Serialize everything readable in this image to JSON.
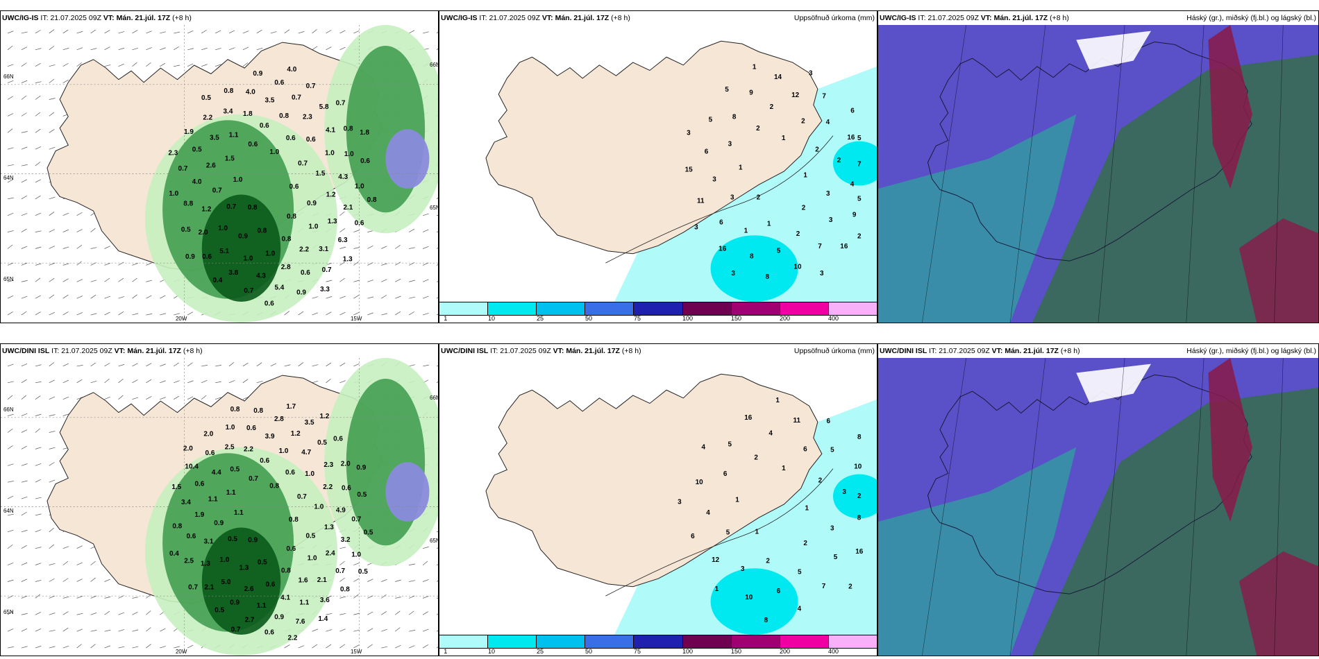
{
  "panels": [
    {
      "model": "UWC/IG-IS",
      "it_label": "IT:",
      "it": "21.07.2025 09Z",
      "vt_label": "VT:",
      "vt": "Mán. 21.júl. 17Z",
      "lead": "(+8 h)",
      "title": "",
      "lat_labels": [
        "66N",
        "64N",
        "65N",
        "20W",
        "15W",
        "66N",
        "65N"
      ],
      "numbers": [
        "0.6",
        "0.8",
        "1.0",
        "0.8",
        "1.0",
        "0.7",
        "0.8",
        "0.6",
        "0.9",
        "0.7",
        "0.6",
        "0.8",
        "1.5",
        "1.5",
        "0.9",
        "0.6",
        "1.0",
        "0.7",
        "0.6",
        "1.0",
        "1.1",
        "1.2",
        "1.0",
        "0.8",
        "2.2",
        "2.6",
        "1.0",
        "1.0",
        "1.8",
        "1.3",
        "1.2",
        "2.3",
        "2.8",
        "3.5",
        "4.3",
        "5.1",
        "3.5",
        "3.1",
        "4.0",
        "4.1",
        "4.3",
        "3.4",
        "2.1",
        "2.0",
        "0.7",
        "0.6",
        "0.5",
        "1.0",
        "3.8",
        "4.0",
        "6.3",
        "8.8",
        "5.8",
        "5.4",
        "2.2",
        "1.0",
        "0.6",
        "0.6",
        "0.7",
        "0.7",
        "0.8",
        "0.7",
        "0.8",
        "0.6",
        "0.5",
        "0.7",
        "0.9",
        "1.9",
        "0.6",
        "0.4",
        "0.9",
        "1.3",
        "1.0",
        "0.7",
        "0.6",
        "0.5",
        "0.8",
        "0.9",
        "4.0",
        "3.3",
        "2.3",
        "1.8"
      ]
    },
    {
      "model": "UWC/IG-IS",
      "it_label": "IT:",
      "it": "21.07.2025 09Z",
      "vt_label": "VT:",
      "vt": "Mán. 21.júl. 17Z",
      "lead": "(+8 h)",
      "title": "Uppsöfnuð úrkoma (mm)",
      "numbers": [
        "1",
        "2",
        "1",
        "2",
        "1",
        "2",
        "1",
        "2",
        "3",
        "3",
        "2",
        "2",
        "3",
        "2",
        "1",
        "2",
        "3",
        "3",
        "4",
        "5",
        "8",
        "4",
        "6",
        "12",
        "7",
        "6",
        "16",
        "8",
        "9",
        "9",
        "11",
        "7",
        "10",
        "5",
        "7",
        "16",
        "14",
        "16",
        "15",
        "6",
        "8",
        "5",
        "5",
        "3",
        "3",
        "3",
        "3",
        "5",
        "3",
        "1",
        "2"
      ]
    },
    {
      "model": "UWC/IG-IS",
      "it_label": "IT:",
      "it": "21.07.2025 09Z",
      "vt_label": "VT:",
      "vt": "Mán. 21.júl. 17Z",
      "lead": "(+8 h)",
      "title": "Háský (gr.), miðský (fj.bl.) og lágský (bl.)"
    },
    {
      "model": "UWC/DINI ISL",
      "it_label": "IT:",
      "it": "21.07.2025 09Z",
      "vt_label": "VT:",
      "vt": "Mán. 21.júl. 17Z",
      "lead": "(+8 h)",
      "title": "",
      "lat_labels": [
        "66N",
        "64N",
        "65N",
        "20W",
        "15W",
        "66N",
        "65N"
      ],
      "numbers": [
        "0.8",
        "0.9",
        "0.8",
        "0.6",
        "1.1",
        "0.7",
        "0.5",
        "0.7",
        "0.5",
        "0.5",
        "0.6",
        "0.8",
        "1.1",
        "1.0",
        "1.3",
        "0.6",
        "1.0",
        "0.9",
        "1.0",
        "0.6",
        "0.5",
        "1.3",
        "1.0",
        "1.0",
        "1.6",
        "1.1",
        "2.2",
        "2.6",
        "2.2",
        "2.4",
        "3.1",
        "4.7",
        "4.1",
        "4.4",
        "4.9",
        "5.0",
        "3.9",
        "2.1",
        "1.9",
        "2.3",
        "1.1",
        "2.5",
        "3.2",
        "1.3",
        "1.2",
        "1.1",
        "0.6",
        "0.6",
        "0.9",
        "0.6",
        "0.7",
        "0.6",
        "0.5",
        "0.9",
        "0.6",
        "0.7",
        "2.1",
        "2.8",
        "3.6",
        "3.4",
        "2.0",
        "2.7",
        "1.0",
        "1.0",
        "2.5",
        "3.5",
        "7.6",
        "10.4",
        "0.5",
        "0.5",
        "0.8",
        "0.8",
        "0.8",
        "0.6",
        "0.6",
        "2.0",
        "0.5",
        "0.7",
        "1.7",
        "1.4",
        "1.5",
        "0.9",
        "0.7",
        "0.8",
        "0.5",
        "0.4",
        "1.2",
        "2.2",
        "2.0"
      ]
    },
    {
      "model": "UWC/DINI ISL",
      "it_label": "IT:",
      "it": "21.07.2025 09Z",
      "vt_label": "VT:",
      "vt": "Mán. 21.júl. 17Z",
      "lead": "(+8 h)",
      "title": "Uppsöfnuð úrkoma (mm)",
      "numbers": [
        "1",
        "1",
        "1",
        "2",
        "1",
        "2",
        "2",
        "2",
        "3",
        "5",
        "6",
        "5",
        "6",
        "3",
        "3",
        "4",
        "5",
        "4",
        "5",
        "6",
        "5",
        "8",
        "12",
        "11",
        "7",
        "10",
        "10",
        "10",
        "16",
        "16",
        "6",
        "6",
        "4",
        "4",
        "2",
        "1",
        "1",
        "2",
        "3",
        "8",
        "8"
      ]
    },
    {
      "model": "UWC/DINI ISL",
      "it_label": "IT:",
      "it": "21.07.2025 09Z",
      "vt_label": "VT:",
      "vt": "Mán. 21.júl. 17Z",
      "lead": "(+8 h)",
      "title": "Háský (gr.), miðský (fj.bl.) og lágský (bl.)"
    }
  ],
  "colorbar": {
    "colors": [
      "#b0fafa",
      "#00e8f0",
      "#00c0f0",
      "#3a6ee8",
      "#2020b0",
      "#700050",
      "#a00070",
      "#f000a0",
      "#f8b0f8"
    ],
    "labels": [
      "1",
      "10",
      "25",
      "50",
      "75",
      "100",
      "150",
      "200",
      "400"
    ]
  },
  "colors": {
    "land": "#f5e6d6",
    "sea": "#ffffff",
    "precip_light": "#c8f0c0",
    "precip_mid": "#3a9a4a",
    "precip_heavy": "#0a5a1a",
    "accum_light": "#b0fafa",
    "accum_mid": "#00e8f0",
    "cloud_high": "#5a50c8",
    "cloud_mid": "#3a6a5a",
    "cloud_low": "#20c090",
    "cloud_white": "#ffffff",
    "cloud_red": "#8a1a4a"
  }
}
